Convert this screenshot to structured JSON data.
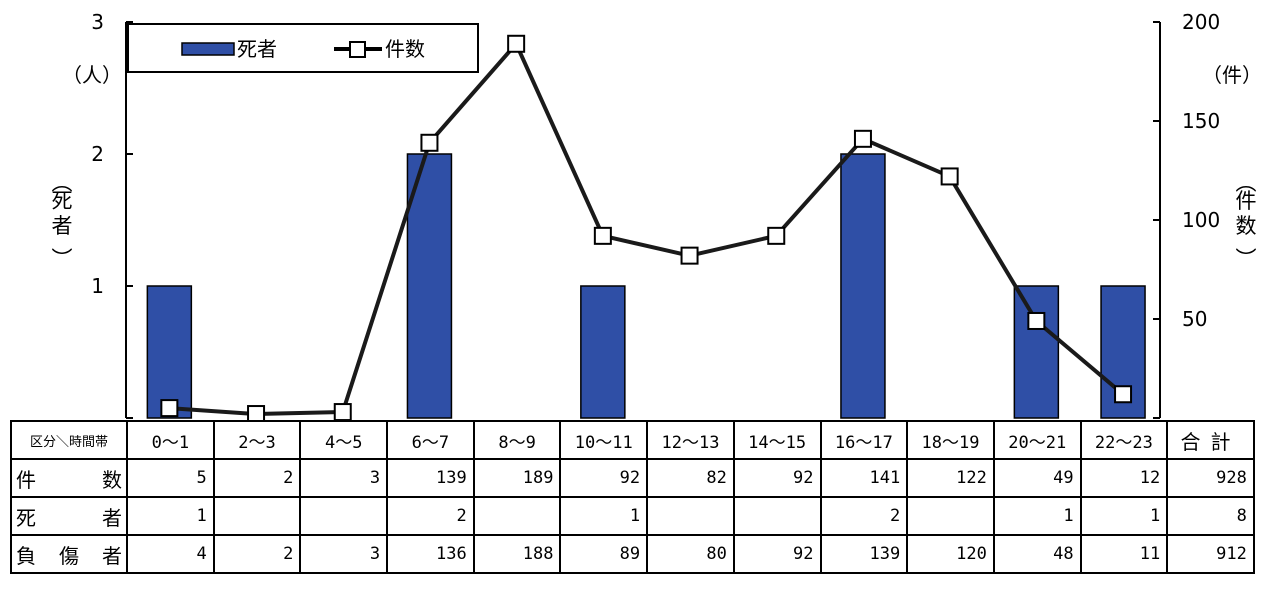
{
  "chart_data": {
    "type": "bar+line",
    "categories": [
      "0～1",
      "2～3",
      "4～5",
      "6～7",
      "8～9",
      "10～11",
      "12～13",
      "14～15",
      "16～17",
      "18～19",
      "20～21",
      "22～23"
    ],
    "series": [
      {
        "name": "死者",
        "type": "bar",
        "axis": "left",
        "color": "#2f4fa6",
        "values": [
          1,
          0,
          0,
          2,
          0,
          1,
          0,
          0,
          2,
          0,
          1,
          1
        ]
      },
      {
        "name": "件数",
        "type": "line",
        "axis": "right",
        "color": "#1a1a1a",
        "marker": "open-square",
        "values": [
          5,
          2,
          3,
          139,
          189,
          92,
          82,
          92,
          141,
          122,
          49,
          12
        ]
      }
    ],
    "left_axis": {
      "label": "死者",
      "unit": "（人）",
      "ylim": [
        0,
        3
      ],
      "ticks": [
        "1",
        "2",
        "3"
      ]
    },
    "right_axis": {
      "label": "件数",
      "unit": "（件）",
      "ylim": [
        0,
        200
      ],
      "ticks": [
        "50",
        "100",
        "150",
        "200"
      ]
    },
    "legend": {
      "position": "top-left"
    },
    "grid": false
  },
  "table": {
    "corner": "区分＼時間帯",
    "total_label": "合計",
    "rows": [
      {
        "label": "件数",
        "values": [
          "5",
          "2",
          "3",
          "139",
          "189",
          "92",
          "82",
          "92",
          "141",
          "122",
          "49",
          "12"
        ],
        "total": "928"
      },
      {
        "label": "死者",
        "values": [
          "1",
          "",
          "",
          "2",
          "",
          "1",
          "",
          "",
          "2",
          "",
          "1",
          "1"
        ],
        "total": "8"
      },
      {
        "label": "負傷者",
        "values": [
          "4",
          "2",
          "3",
          "136",
          "188",
          "89",
          "80",
          "92",
          "139",
          "120",
          "48",
          "11"
        ],
        "total": "912"
      }
    ]
  }
}
